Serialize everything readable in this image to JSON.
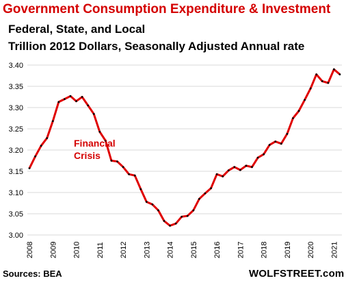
{
  "header": {
    "title": "Government Consumption  Expenditure & Investment",
    "subtitle1": "Federal, State, and Local",
    "subtitle2": "Trillion 2012 Dollars, Seasonally Adjusted Annual rate"
  },
  "footer": {
    "source": "Sources: BEA",
    "brand": "WOLFSTREET.com"
  },
  "chart_data": {
    "type": "line",
    "series": [
      {
        "values": [
          3.157,
          3.185,
          3.21,
          3.228,
          3.268,
          3.313,
          3.32,
          3.327,
          3.315,
          3.325,
          3.305,
          3.285,
          3.243,
          3.222,
          3.175,
          3.173,
          3.16,
          3.143,
          3.14,
          3.108,
          3.078,
          3.072,
          3.058,
          3.033,
          3.022,
          3.027,
          3.043,
          3.045,
          3.058,
          3.085,
          3.098,
          3.11,
          3.143,
          3.138,
          3.152,
          3.16,
          3.153,
          3.163,
          3.16,
          3.182,
          3.19,
          3.212,
          3.22,
          3.215,
          3.238,
          3.275,
          3.292,
          3.318,
          3.345,
          3.378,
          3.362,
          3.358,
          3.39,
          3.378
        ],
        "color": "#e00000"
      }
    ],
    "x_start_year": 2008,
    "x_step_years": 0.25,
    "xlim": [
      2008,
      2021.25
    ],
    "ylim": [
      3.0,
      3.4
    ],
    "y_ticks": [
      "3.00",
      "3.05",
      "3.10",
      "3.15",
      "3.20",
      "3.25",
      "3.30",
      "3.35",
      "3.40"
    ],
    "x_ticks": [
      "2008",
      "2009",
      "2010",
      "2011",
      "2012",
      "2013",
      "2014",
      "2015",
      "2016",
      "2017",
      "2018",
      "2019",
      "2020",
      "2021"
    ],
    "annotation": [
      "Financial",
      "Crisis"
    ],
    "grid": true,
    "colors": {
      "line": "#e00000",
      "markers": "#000000",
      "grid": "#d9d9d9",
      "title": "#d40000"
    }
  }
}
